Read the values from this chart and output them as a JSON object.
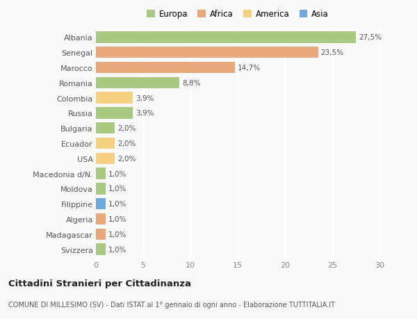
{
  "countries": [
    "Albania",
    "Senegal",
    "Marocco",
    "Romania",
    "Colombia",
    "Russia",
    "Bulgaria",
    "Ecuador",
    "USA",
    "Macedonia d/N.",
    "Moldova",
    "Filippine",
    "Algeria",
    "Madagascar",
    "Svizzera"
  ],
  "values": [
    27.5,
    23.5,
    14.7,
    8.8,
    3.9,
    3.9,
    2.0,
    2.0,
    2.0,
    1.0,
    1.0,
    1.0,
    1.0,
    1.0,
    1.0
  ],
  "labels": [
    "27,5%",
    "23,5%",
    "14,7%",
    "8,8%",
    "3,9%",
    "3,9%",
    "2,0%",
    "2,0%",
    "2,0%",
    "1,0%",
    "1,0%",
    "1,0%",
    "1,0%",
    "1,0%",
    "1,0%"
  ],
  "continents": [
    "Europa",
    "Africa",
    "Africa",
    "Europa",
    "America",
    "Europa",
    "Europa",
    "America",
    "America",
    "Europa",
    "Europa",
    "Asia",
    "Africa",
    "Africa",
    "Europa"
  ],
  "continent_colors": {
    "Europa": "#a8c97f",
    "Africa": "#e8a87c",
    "America": "#f5d080",
    "Asia": "#6fa8dc"
  },
  "legend_items": [
    "Europa",
    "Africa",
    "America",
    "Asia"
  ],
  "legend_colors": [
    "#a8c97f",
    "#e8a87c",
    "#f5d080",
    "#6fa8dc"
  ],
  "xlim": [
    0,
    30
  ],
  "xticks": [
    0,
    5,
    10,
    15,
    20,
    25,
    30
  ],
  "title": "Cittadini Stranieri per Cittadinanza",
  "subtitle": "COMUNE DI MILLESIMO (SV) - Dati ISTAT al 1° gennaio di ogni anno - Elaborazione TUTTITALIA.IT",
  "background_color": "#f9f9f9",
  "grid_color": "#ffffff",
  "bar_height": 0.75
}
